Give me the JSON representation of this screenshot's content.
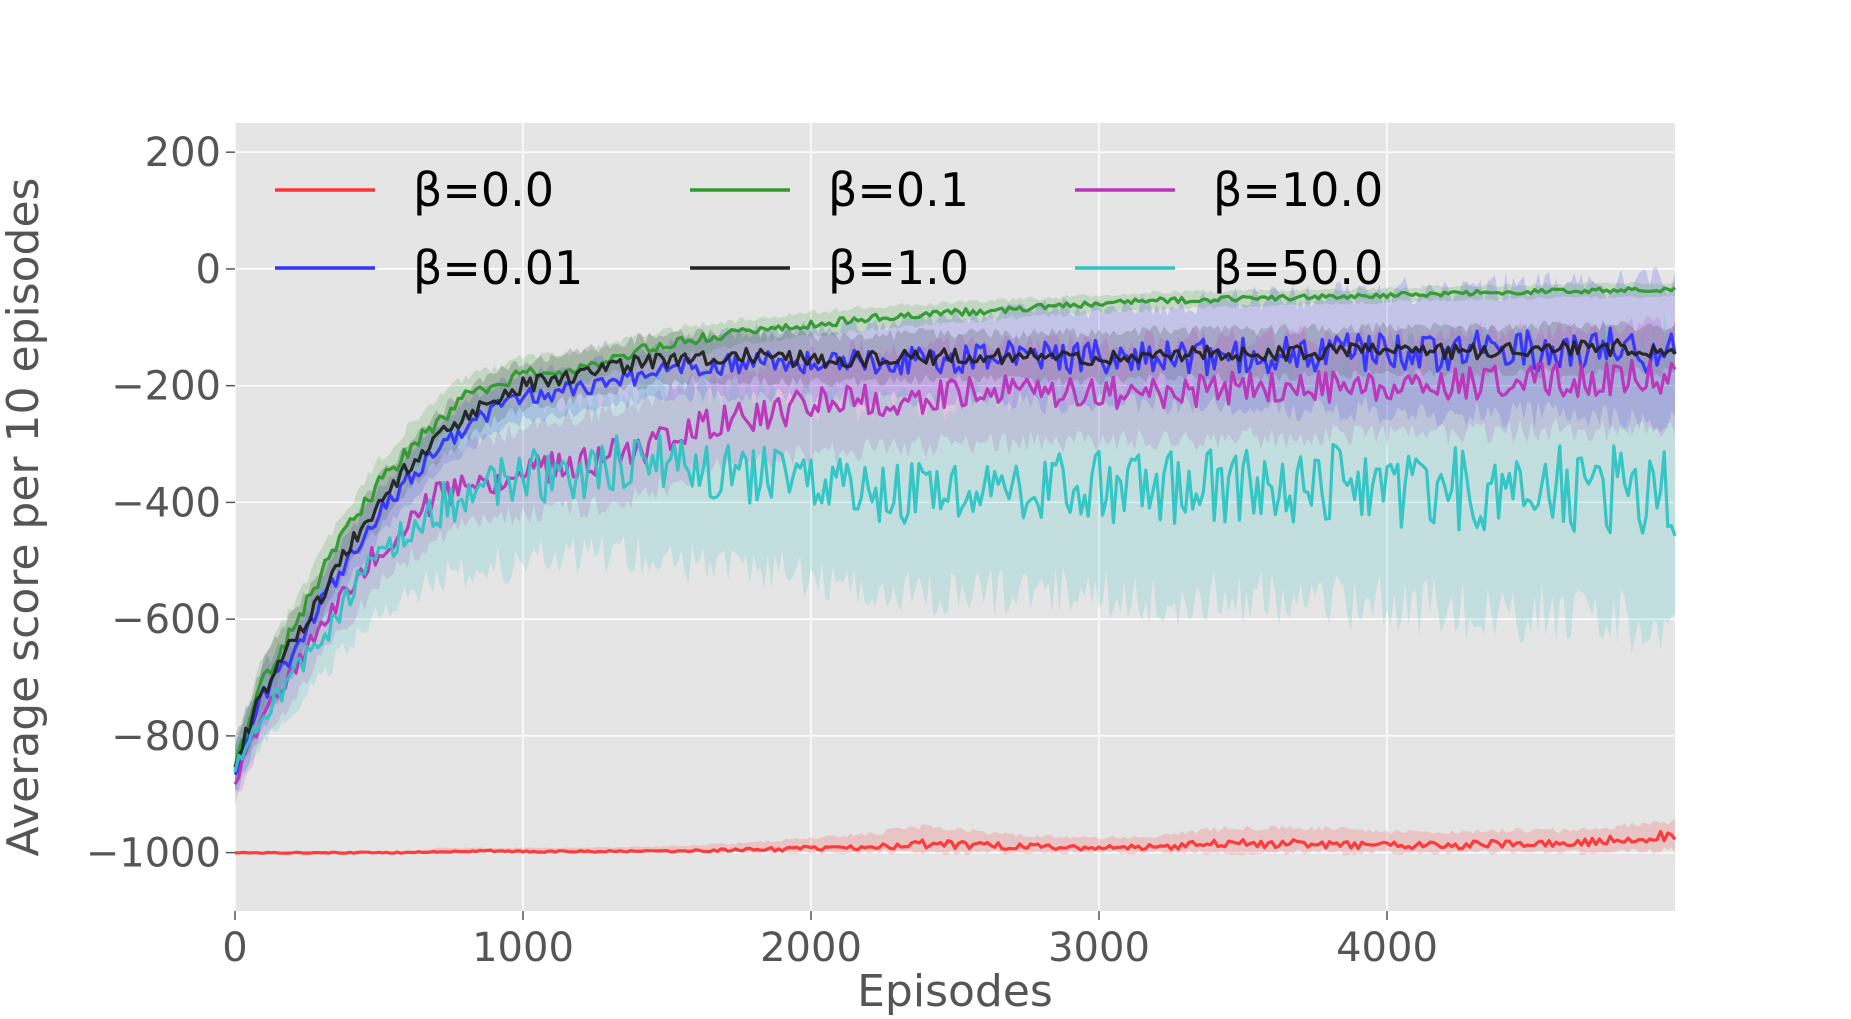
{
  "chart_data": {
    "type": "line",
    "title": "",
    "xlabel": "Episodes",
    "ylabel": "Average score per 10 episodes",
    "xlim": [
      0,
      5000
    ],
    "ylim": [
      -1100,
      250
    ],
    "xticks": [
      0,
      1000,
      2000,
      3000,
      4000
    ],
    "xtick_labels": [
      "0",
      "1000",
      "2000",
      "3000",
      "4000"
    ],
    "yticks": [
      200,
      0,
      -200,
      -400,
      -600,
      -800,
      -1000
    ],
    "ytick_labels": [
      "200",
      "0",
      "−200",
      "−400",
      "−600",
      "−800",
      "−1000"
    ],
    "grid": true,
    "legend": {
      "placement": "top-left",
      "columns": 3
    },
    "x": [
      0,
      100,
      200,
      300,
      400,
      500,
      600,
      700,
      800,
      900,
      1000,
      1200,
      1400,
      1600,
      1800,
      2000,
      2200,
      2400,
      2600,
      2800,
      3000,
      3200,
      3400,
      3600,
      3800,
      4000,
      4200,
      4400,
      4600,
      4800,
      5000
    ],
    "series": [
      {
        "name": "β=0.0",
        "label": "β=0.0",
        "color": "#ff3333",
        "values": [
          -1000,
          -1000,
          -1000,
          -1000,
          -1000,
          -1000,
          -1000,
          -998,
          -998,
          -997,
          -998,
          -998,
          -998,
          -997,
          -995,
          -992,
          -990,
          -985,
          -988,
          -990,
          -992,
          -990,
          -985,
          -985,
          -985,
          -988,
          -988,
          -985,
          -985,
          -978,
          -970
        ],
        "lower": [
          -1000,
          -1000,
          -1000,
          -1000,
          -1000,
          -1000,
          -1000,
          -1000,
          -1000,
          -1000,
          -1000,
          -1000,
          -1000,
          -1000,
          -1000,
          -1000,
          -1000,
          -1000,
          -1000,
          -1000,
          -1000,
          -1000,
          -1000,
          -1000,
          -1000,
          -1000,
          -1000,
          -1000,
          -1000,
          -1000,
          -995
        ],
        "upper": [
          -1000,
          -1000,
          -1000,
          -1000,
          -1000,
          -1000,
          -1000,
          -992,
          -992,
          -992,
          -992,
          -992,
          -990,
          -988,
          -982,
          -975,
          -968,
          -955,
          -965,
          -972,
          -975,
          -972,
          -960,
          -958,
          -958,
          -965,
          -965,
          -962,
          -962,
          -955,
          -945
        ]
      },
      {
        "name": "β=0.01",
        "label": "β=0.01",
        "color": "#3333ff",
        "values": [
          -860,
          -730,
          -660,
          -570,
          -490,
          -420,
          -360,
          -310,
          -270,
          -240,
          -220,
          -205,
          -185,
          -165,
          -160,
          -160,
          -160,
          -155,
          -150,
          -150,
          -150,
          -150,
          -150,
          -145,
          -145,
          -140,
          -140,
          -140,
          -140,
          -140,
          -145
        ],
        "lower": [
          -900,
          -780,
          -700,
          -610,
          -530,
          -460,
          -400,
          -350,
          -310,
          -280,
          -260,
          -245,
          -225,
          -215,
          -215,
          -220,
          -225,
          -225,
          -225,
          -230,
          -230,
          -230,
          -235,
          -235,
          -240,
          -240,
          -245,
          -245,
          -250,
          -255,
          -260
        ],
        "upper": [
          -820,
          -680,
          -620,
          -530,
          -450,
          -380,
          -320,
          -270,
          -230,
          -200,
          -180,
          -165,
          -145,
          -115,
          -105,
          -100,
          -95,
          -85,
          -75,
          -70,
          -65,
          -60,
          -55,
          -50,
          -45,
          -40,
          -35,
          -30,
          -30,
          -25,
          -25
        ]
      },
      {
        "name": "β=0.1",
        "label": "β=0.1",
        "color": "#2e9a2e",
        "values": [
          -850,
          -700,
          -620,
          -520,
          -440,
          -370,
          -310,
          -260,
          -220,
          -200,
          -180,
          -170,
          -140,
          -120,
          -105,
          -95,
          -85,
          -78,
          -72,
          -65,
          -60,
          -55,
          -52,
          -50,
          -48,
          -45,
          -42,
          -40,
          -38,
          -36,
          -35
        ],
        "lower": [
          -880,
          -740,
          -660,
          -560,
          -480,
          -410,
          -350,
          -300,
          -255,
          -230,
          -210,
          -195,
          -165,
          -145,
          -125,
          -115,
          -105,
          -95,
          -88,
          -80,
          -75,
          -70,
          -66,
          -63,
          -60,
          -57,
          -54,
          -52,
          -50,
          -48,
          -46
        ],
        "upper": [
          -820,
          -660,
          -580,
          -480,
          -400,
          -330,
          -270,
          -220,
          -185,
          -170,
          -150,
          -145,
          -115,
          -95,
          -85,
          -75,
          -65,
          -60,
          -56,
          -50,
          -45,
          -40,
          -38,
          -37,
          -36,
          -33,
          -30,
          -28,
          -26,
          -24,
          -24
        ]
      },
      {
        "name": "β=1.0",
        "label": "β=1.0",
        "color": "#222222",
        "values": [
          -850,
          -720,
          -640,
          -560,
          -470,
          -400,
          -340,
          -290,
          -250,
          -220,
          -200,
          -180,
          -160,
          -150,
          -150,
          -155,
          -155,
          -150,
          -150,
          -150,
          -150,
          -145,
          -145,
          -145,
          -142,
          -140,
          -140,
          -140,
          -138,
          -135,
          -140
        ],
        "lower": [
          -890,
          -770,
          -690,
          -600,
          -510,
          -440,
          -380,
          -330,
          -290,
          -260,
          -240,
          -220,
          -200,
          -190,
          -190,
          -195,
          -195,
          -190,
          -190,
          -190,
          -190,
          -185,
          -185,
          -185,
          -182,
          -180,
          -180,
          -180,
          -178,
          -175,
          -180
        ],
        "upper": [
          -810,
          -670,
          -590,
          -520,
          -430,
          -360,
          -300,
          -250,
          -210,
          -180,
          -160,
          -140,
          -120,
          -110,
          -110,
          -115,
          -115,
          -110,
          -110,
          -110,
          -110,
          -105,
          -105,
          -105,
          -102,
          -100,
          -100,
          -100,
          -98,
          -95,
          -100
        ]
      },
      {
        "name": "β=10.0",
        "label": "β=10.0",
        "color": "#bb33bb",
        "values": [
          -880,
          -760,
          -690,
          -610,
          -540,
          -480,
          -430,
          -390,
          -370,
          -360,
          -345,
          -330,
          -310,
          -270,
          -250,
          -235,
          -225,
          -220,
          -215,
          -210,
          -210,
          -210,
          -205,
          -205,
          -200,
          -200,
          -195,
          -195,
          -190,
          -188,
          -185
        ],
        "lower": [
          -920,
          -800,
          -740,
          -660,
          -600,
          -540,
          -500,
          -460,
          -440,
          -430,
          -420,
          -410,
          -390,
          -350,
          -330,
          -320,
          -310,
          -305,
          -300,
          -295,
          -295,
          -295,
          -290,
          -290,
          -285,
          -285,
          -280,
          -280,
          -275,
          -275,
          -270
        ],
        "upper": [
          -840,
          -720,
          -640,
          -560,
          -480,
          -420,
          -360,
          -320,
          -300,
          -290,
          -270,
          -250,
          -230,
          -190,
          -170,
          -150,
          -140,
          -135,
          -130,
          -125,
          -125,
          -125,
          -120,
          -120,
          -115,
          -115,
          -110,
          -110,
          -105,
          -100,
          -100
        ]
      },
      {
        "name": "β=50.0",
        "label": "β=50.0",
        "color": "#2ec4c4",
        "values": [
          -860,
          -760,
          -700,
          -630,
          -560,
          -500,
          -450,
          -410,
          -390,
          -370,
          -360,
          -345,
          -330,
          -340,
          -355,
          -370,
          -380,
          -385,
          -378,
          -375,
          -375,
          -372,
          -372,
          -372,
          -370,
          -372,
          -375,
          -375,
          -375,
          -385,
          -395
        ],
        "lower": [
          -900,
          -810,
          -760,
          -700,
          -640,
          -590,
          -560,
          -530,
          -520,
          -510,
          -500,
          -490,
          -490,
          -500,
          -510,
          -530,
          -545,
          -555,
          -555,
          -555,
          -560,
          -565,
          -565,
          -565,
          -570,
          -575,
          -580,
          -585,
          -590,
          -600,
          -610
        ],
        "upper": [
          -820,
          -710,
          -640,
          -560,
          -480,
          -410,
          -340,
          -290,
          -260,
          -235,
          -225,
          -215,
          -200,
          -205,
          -215,
          -225,
          -225,
          -225,
          -215,
          -205,
          -195,
          -185,
          -175,
          -170,
          -165,
          -160,
          -150,
          -145,
          -140,
          -135,
          -130
        ]
      }
    ]
  }
}
